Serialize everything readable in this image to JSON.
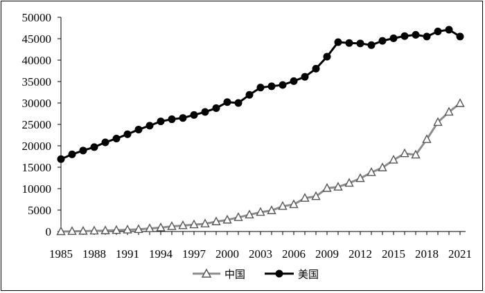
{
  "chart_data": {
    "type": "line",
    "title": "",
    "xlabel": "",
    "ylabel": "",
    "ylim": [
      0,
      50000
    ],
    "yticks": [
      0,
      5000,
      10000,
      15000,
      20000,
      25000,
      30000,
      35000,
      40000,
      45000,
      50000
    ],
    "xlim": [
      1985,
      2021
    ],
    "xticks": [
      1985,
      1988,
      1991,
      1994,
      1997,
      2000,
      2003,
      2006,
      2009,
      2012,
      2015,
      2018,
      2021
    ],
    "x": [
      1985,
      1986,
      1987,
      1988,
      1989,
      1990,
      1991,
      1992,
      1993,
      1994,
      1995,
      1996,
      1997,
      1998,
      1999,
      2000,
      2001,
      2002,
      2003,
      2004,
      2005,
      2006,
      2007,
      2008,
      2009,
      2010,
      2011,
      2012,
      2013,
      2014,
      2015,
      2016,
      2017,
      2018,
      2019,
      2020,
      2021
    ],
    "legend_position": "bottom",
    "grid": false,
    "series": [
      {
        "name": "中国",
        "color": "#8c8c8c",
        "marker": "triangle-open",
        "values": [
          0,
          50,
          100,
          150,
          200,
          300,
          400,
          500,
          700,
          900,
          1200,
          1400,
          1600,
          1800,
          2300,
          2700,
          3300,
          3900,
          4500,
          4900,
          5900,
          6300,
          7800,
          8200,
          10100,
          10400,
          11300,
          12400,
          13800,
          14900,
          16700,
          18200,
          17900,
          21500,
          25500,
          27900,
          29900
        ]
      },
      {
        "name": "美国",
        "color": "#000000",
        "marker": "circle-filled",
        "values": [
          16900,
          18000,
          18900,
          19700,
          20800,
          21700,
          22700,
          23800,
          24700,
          25700,
          26200,
          26500,
          27200,
          27900,
          28800,
          30200,
          30000,
          31900,
          33600,
          33900,
          34200,
          35100,
          36100,
          38000,
          40800,
          44200,
          44000,
          43900,
          43500,
          44500,
          45100,
          45600,
          45900,
          45500,
          46700,
          47100,
          45500
        ]
      }
    ]
  }
}
